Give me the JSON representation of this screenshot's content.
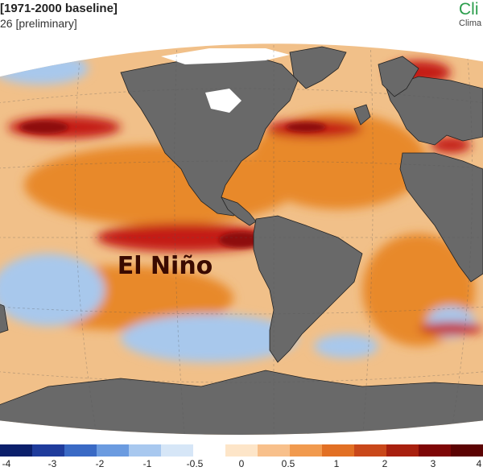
{
  "header": {
    "title": "[1971-2000 baseline]",
    "subtitle": "26 [preliminary]"
  },
  "brand": {
    "name": "Cli",
    "sub": "Clima"
  },
  "map": {
    "annotation": "El Niño",
    "colors": {
      "ocean_base": "#f1c089",
      "land": "#696969",
      "ice": "#ffffff",
      "anomaly_hot": "#c41a12",
      "anomaly_very_hot": "#8e0b0b",
      "anomaly_warm": "#e8892c",
      "anomaly_cool": "#a8c8ec",
      "anomaly_cold": "#3c6ec8"
    }
  },
  "legend": {
    "ticks": [
      "-4",
      "-3",
      "-2",
      "-1",
      "-0.5",
      "0",
      "0.5",
      "1",
      "2",
      "3",
      "4"
    ],
    "colors": [
      "#0b1f6b",
      "#1f3c9c",
      "#3a6ac5",
      "#6b9be0",
      "#a8c8ef",
      "#d6e6f7",
      "#ffffff",
      "#fde5c8",
      "#f8c08b",
      "#f19a4e",
      "#e27024",
      "#c9481a",
      "#a8200f",
      "#7e0707",
      "#5c0303"
    ]
  }
}
